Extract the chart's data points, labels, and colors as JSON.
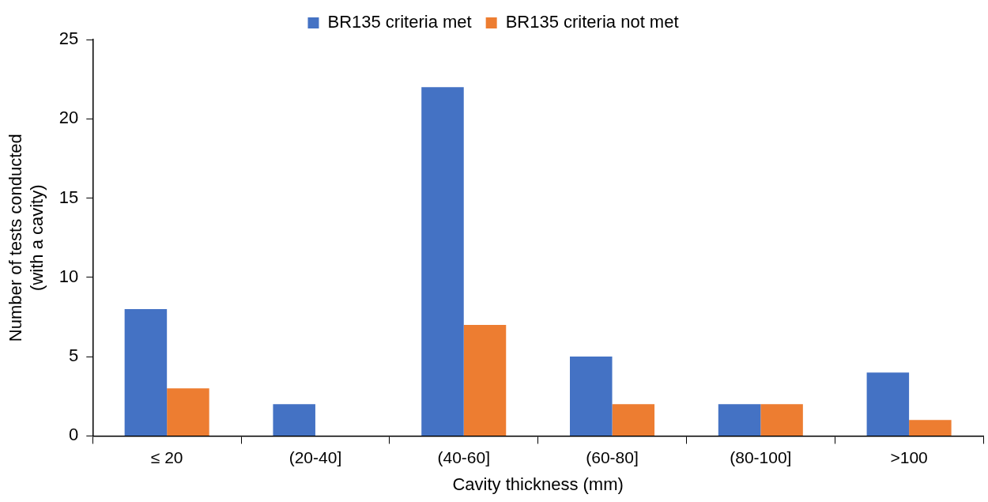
{
  "chart_data": {
    "type": "bar",
    "xlabel": "Cavity thickness (mm)",
    "ylabel": "Number of tests conducted\n(with a cavity)",
    "categories": [
      "≤ 20",
      "(20-40]",
      "(40-60]",
      "(60-80]",
      "(80-100]",
      ">100"
    ],
    "series": [
      {
        "name": "BR135 criteria met",
        "color": "#4472c4",
        "values": [
          8,
          2,
          22,
          5,
          2,
          4
        ]
      },
      {
        "name": "BR135 criteria not met",
        "color": "#ed7d31",
        "values": [
          3,
          0,
          7,
          2,
          2,
          1
        ]
      }
    ],
    "ylim": [
      0,
      25
    ],
    "yticks": [
      0,
      5,
      10,
      15,
      20,
      25
    ],
    "grid": false,
    "legend": "top"
  }
}
